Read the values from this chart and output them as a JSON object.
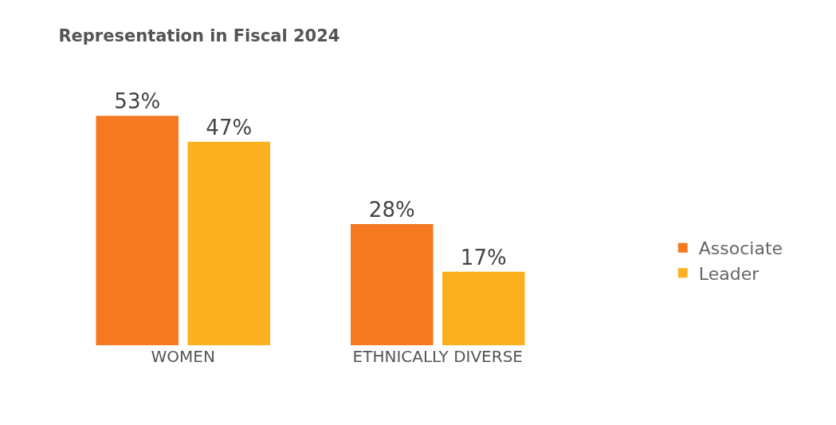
{
  "chart_data": {
    "type": "bar",
    "title": "Representation in Fiscal 2024",
    "categories": [
      "WOMEN",
      "ETHNICALLY DIVERSE"
    ],
    "series": [
      {
        "name": "Associate",
        "color": "#f47920",
        "values": [
          53,
          28
        ],
        "value_labels": [
          "53%",
          "28%"
        ]
      },
      {
        "name": "Leader",
        "color": "#fdb01f",
        "values": [
          47,
          17
        ],
        "value_labels": [
          "47%",
          "17%"
        ]
      }
    ],
    "legend": "right"
  }
}
